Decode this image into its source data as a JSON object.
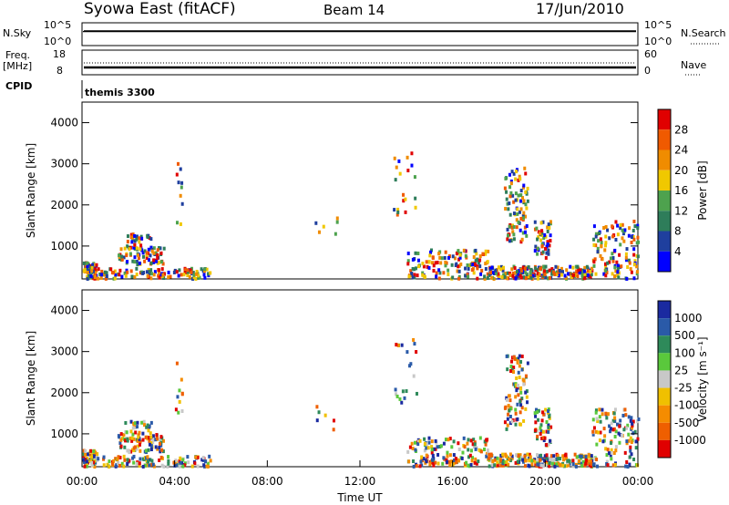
{
  "header": {
    "station": "Syowa East (fitACF)",
    "beam": "Beam 14",
    "date": "17/Jun/2010"
  },
  "strips": {
    "nsky_label": "N.Sky",
    "nsky_ticks": [
      "10^5",
      "10^0"
    ],
    "nsearch_label": "N.Search",
    "nsearch_ticks": [
      "10^5",
      "10^0"
    ],
    "freq_label_line1": "Freq.",
    "freq_label_line2": "[MHz]",
    "freq_ticks": [
      "18",
      "8"
    ],
    "nave_label": "Nave",
    "nave_ticks": [
      "60",
      "0"
    ],
    "cpid_label": "CPID",
    "cpid_value": "themis 3300"
  },
  "x_ticks": [
    "00:00",
    "04:00",
    "08:00",
    "12:00",
    "16:00",
    "20:00",
    "00:00"
  ],
  "xlabel": "Time UT",
  "colors": {
    "power": [
      "#0000ff",
      "#1f3f9e",
      "#2e7d5a",
      "#4ea24e",
      "#f0c800",
      "#f08c00",
      "#f05a00",
      "#e00000"
    ],
    "velocity": [
      "#e00000",
      "#ef5f00",
      "#f58c00",
      "#f0c000",
      "#c8c8c8",
      "#5ac83c",
      "#2e8a5a",
      "#2a5aa8",
      "#1a2aa0"
    ]
  },
  "chart_data": [
    {
      "type": "heatmap",
      "name": "power",
      "xlabel": "Time UT",
      "ylabel": "Slant Range [km]",
      "xlim": [
        "00:00",
        "24:00"
      ],
      "ylim": [
        200,
        4500
      ],
      "yticks": [
        "1000",
        "2000",
        "3000",
        "4000"
      ],
      "colorbar": {
        "label": "Power [dB]",
        "ticks": [
          "4",
          "8",
          "12",
          "16",
          "20",
          "24",
          "28"
        ]
      }
    },
    {
      "type": "heatmap",
      "name": "velocity",
      "xlabel": "Time UT",
      "ylabel": "Slant Range [km]",
      "xlim": [
        "00:00",
        "24:00"
      ],
      "ylim": [
        200,
        4500
      ],
      "yticks": [
        "1000",
        "2000",
        "3000",
        "4000"
      ],
      "colorbar": {
        "label": "Velocity [m s⁻¹]",
        "ticks": [
          "1000",
          "500",
          "100",
          "25",
          "-25",
          "-100",
          "-500",
          "-1000"
        ]
      }
    }
  ]
}
